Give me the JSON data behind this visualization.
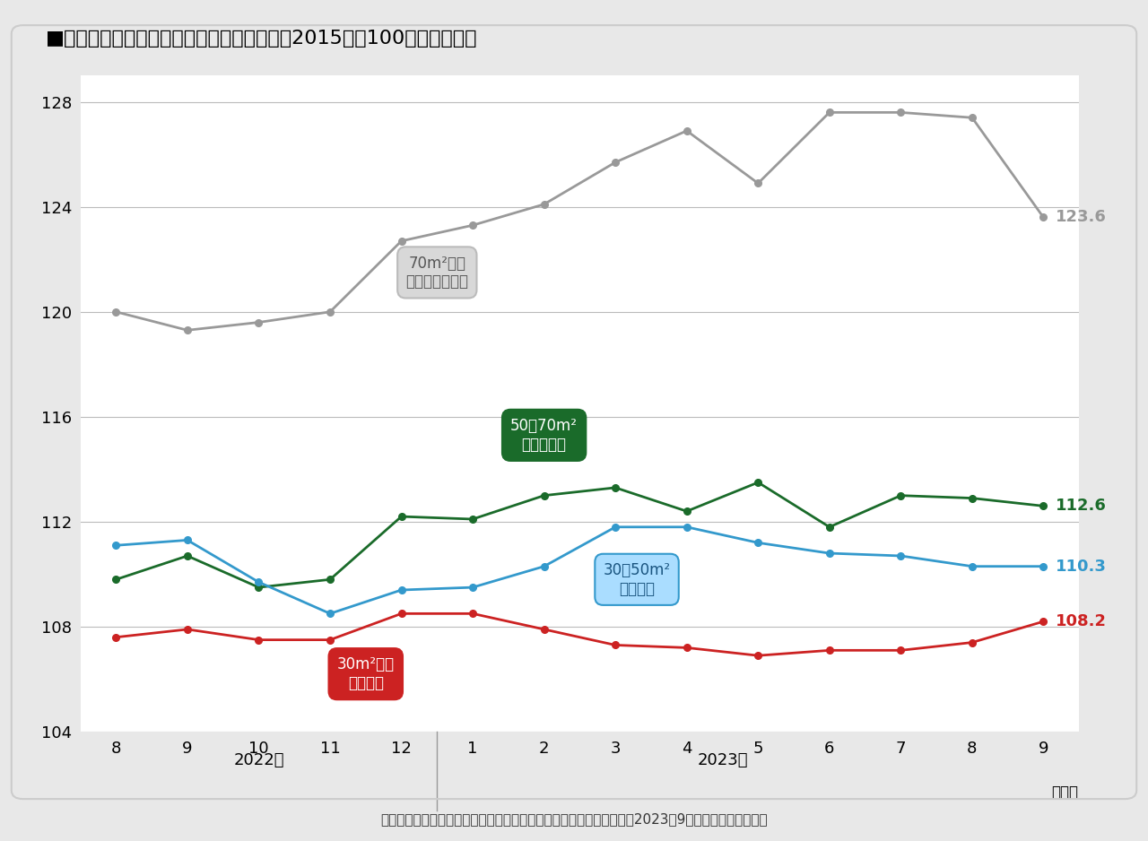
{
  "title": "■千葉県－マンション平均家賣指数の推移（2015年＝100としたもの）",
  "footnote": "出典：全国主要都市の「賃貸マンション・アパート」募集家賣動向（2023年9月）アットホーム調べ",
  "x_labels": [
    "8",
    "9",
    "10",
    "11",
    "12",
    "1",
    "2",
    "3",
    "4",
    "5",
    "6",
    "7",
    "8",
    "9"
  ],
  "year_label_2022": "2022年",
  "year_label_2023": "2023年",
  "month_label": "（月）",
  "series": {
    "large_family": {
      "label_line1": "70m²以上",
      "label_line2": "大型ファミリー",
      "color": "#999999",
      "values": [
        120.0,
        119.3,
        119.6,
        120.0,
        122.7,
        123.3,
        124.1,
        125.7,
        126.9,
        124.9,
        127.6,
        127.6,
        127.4,
        123.6
      ]
    },
    "family": {
      "label_line1": "50～70m²",
      "label_line2": "ファミリー",
      "color": "#1a6b2a",
      "values": [
        109.8,
        110.7,
        109.5,
        109.8,
        112.2,
        112.1,
        113.0,
        113.3,
        112.4,
        113.5,
        111.8,
        113.0,
        112.9,
        112.6
      ]
    },
    "couple": {
      "label_line1": "30～50m²",
      "label_line2": "カップル",
      "color": "#3399cc",
      "values": [
        111.1,
        111.3,
        109.7,
        108.5,
        109.4,
        109.5,
        110.3,
        111.8,
        111.8,
        111.2,
        110.8,
        110.7,
        110.3,
        110.3
      ]
    },
    "single": {
      "label_line1": "30m²未満",
      "label_line2": "シングル",
      "color": "#cc2222",
      "values": [
        107.6,
        107.9,
        107.5,
        107.5,
        108.5,
        108.5,
        107.9,
        107.3,
        107.2,
        106.9,
        107.1,
        107.1,
        107.4,
        108.2
      ]
    }
  },
  "ylim": [
    104,
    129
  ],
  "yticks": [
    104,
    108,
    112,
    116,
    120,
    124,
    128
  ],
  "outer_background": "#e8e8e8",
  "plot_background": "#ffffff"
}
